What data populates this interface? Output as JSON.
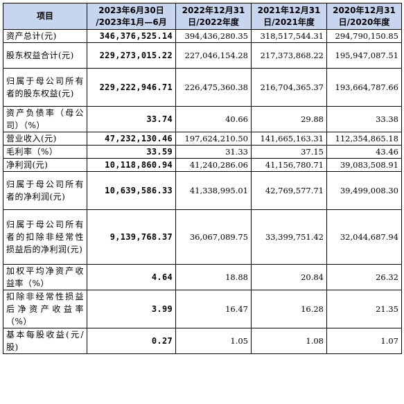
{
  "table": {
    "headers": [
      "项目",
      "2023年6月30日\n/2023年1月—6月",
      "2022年12月31\n日/2022年度",
      "2021年12月31\n日/2021年度",
      "2020年12月31\n日/2020年度"
    ],
    "rows": [
      {
        "label": "资产总计(元)",
        "values": [
          "346,376,525.14",
          "394,436,280.35",
          "318,517,544.31",
          "294,790,150.85"
        ]
      },
      {
        "label": "股东权益合计(元)",
        "values": [
          "229,273,015.22",
          "227,046,154.28",
          "217,373,868.22",
          "195,947,087.51"
        ]
      },
      {
        "label": "归属于母公司所有者的股东权益(元)",
        "values": [
          "229,222,946.71",
          "226,475,360.38",
          "216,704,365.37",
          "193,664,787.66"
        ]
      },
      {
        "label": "资产负债率（母公司）（%）",
        "values": [
          "33.74",
          "40.66",
          "29.88",
          "33.38"
        ]
      },
      {
        "label": "营业收入(元)",
        "values": [
          "47,232,130.46",
          "197,624,210.50",
          "141,665,163.31",
          "112,354,865.18"
        ]
      },
      {
        "label": "毛利率（%）",
        "values": [
          "33.59",
          "31.33",
          "37.15",
          "43.46"
        ]
      },
      {
        "label": "净利润(元)",
        "values": [
          "10,118,860.94",
          "41,240,286.06",
          "41,156,780.71",
          "39,083,508.91"
        ]
      },
      {
        "label": "归属于母公司所有者的净利润(元)",
        "values": [
          "10,639,586.33",
          "41,338,995.01",
          "42,769,577.71",
          "39,499,008.30"
        ]
      },
      {
        "label": "归属于母公司所有者的扣除非经常性损益后的净利润(元)",
        "values": [
          "9,139,768.37",
          "36,067,089.75",
          "33,399,751.42",
          "32,044,687.94"
        ]
      },
      {
        "label": "加权平均净资产收益率（%）",
        "values": [
          "4.64",
          "18.88",
          "20.84",
          "26.32"
        ]
      },
      {
        "label": "扣除非经常性损益后净资产收益率（%）",
        "values": [
          "3.99",
          "16.47",
          "16.28",
          "21.35"
        ]
      },
      {
        "label": "基本每股收益(元/股)",
        "values": [
          "0.27",
          "1.05",
          "1.08",
          "1.07"
        ]
      }
    ]
  },
  "colors": {
    "header_background": "#c7d6ee",
    "border": "#000000",
    "text": "#000000"
  }
}
